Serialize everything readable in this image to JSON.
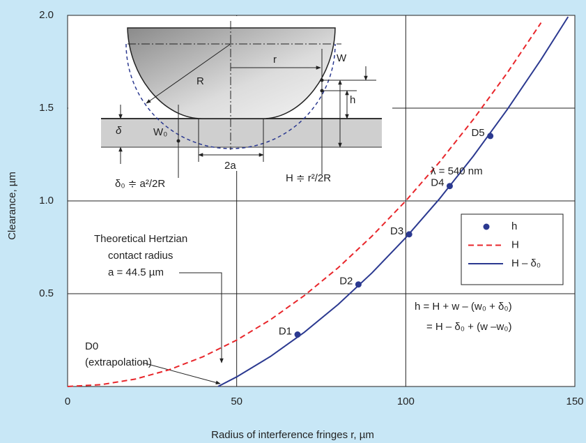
{
  "chart_data": {
    "type": "line",
    "xlabel": "Radius of interference fringes r, µm",
    "ylabel": "Clearance, µm",
    "xlim": [
      0,
      150
    ],
    "ylim": [
      0,
      2
    ],
    "xticks": [
      0,
      50,
      100,
      150
    ],
    "yticks": [
      0.5,
      {
        "value": 1,
        "label": "1.0"
      },
      1.5,
      {
        "value": 2,
        "label": "2.0"
      }
    ],
    "grid": true,
    "series": [
      {
        "name": "h",
        "color": "#2b3990",
        "marker": "dot",
        "x": [
          68,
          86,
          101,
          113,
          125
        ],
        "values": [
          0.28,
          0.55,
          0.82,
          1.08,
          1.35
        ],
        "point_labels": [
          "D1",
          "D2",
          "D3",
          "D4",
          "D5"
        ]
      },
      {
        "name": "H",
        "color": "#e8262b",
        "dashed": true,
        "x": [
          0,
          10,
          20,
          30,
          40,
          50,
          60,
          70,
          80,
          90,
          100,
          110,
          120,
          130,
          140
        ],
        "values": [
          0,
          0.01,
          0.04,
          0.09,
          0.16,
          0.25,
          0.36,
          0.49,
          0.64,
          0.81,
          1.0,
          1.21,
          1.44,
          1.69,
          1.96
        ]
      },
      {
        "name": "H – δ₀",
        "color": "#2b3990",
        "x": [
          44.5,
          50,
          60,
          70,
          80,
          90,
          100,
          110,
          120,
          130,
          140,
          148
        ],
        "values": [
          0,
          0.052,
          0.162,
          0.292,
          0.442,
          0.612,
          0.802,
          1.012,
          1.242,
          1.492,
          1.762,
          1.992
        ]
      }
    ],
    "annotations": [
      "λ = 540 nm",
      "h = H + w – (w₀ + δ₀)",
      "= H – δ₀ + (w –w₀)",
      "Theoretical Hertzian",
      "contact radius",
      "a = 44.5 µm",
      "D0",
      "(extrapolation)"
    ]
  },
  "diagram_labels": {
    "R": "R",
    "r": "r",
    "W": "W",
    "h": "h",
    "delta": "δ",
    "W0": "W₀",
    "two_a": "2a",
    "delta0": "δ₀ ≑ a²/2R",
    "H": "H ≑ r²/2R"
  }
}
